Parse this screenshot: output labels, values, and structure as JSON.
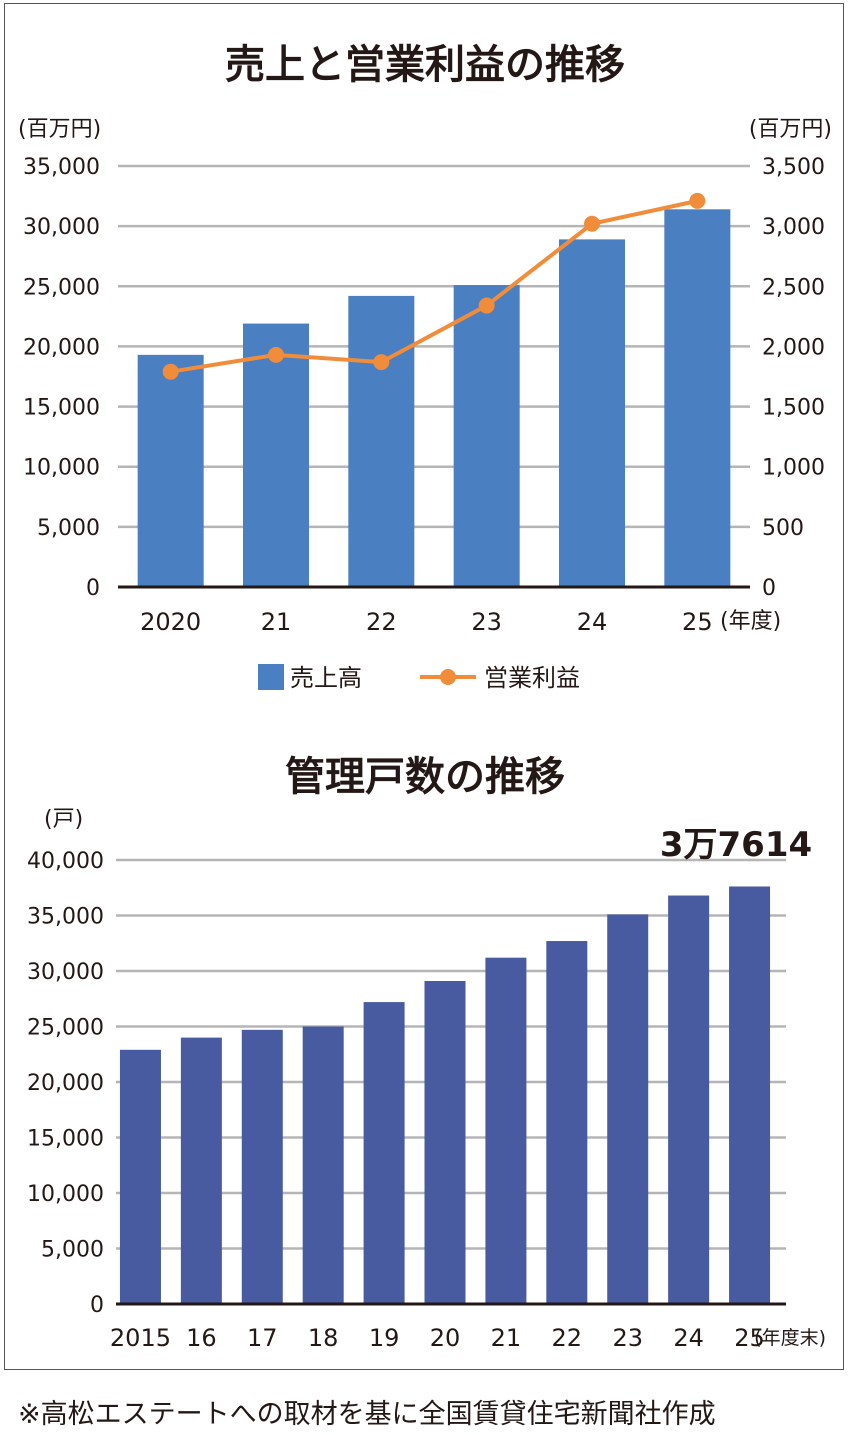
{
  "chart_data": [
    {
      "type": "bar+line",
      "title": "売上と営業利益の推移",
      "ylabel_left": "(百万円)",
      "ylabel_right": "(百万円)",
      "xunit": "(年度)",
      "categories": [
        "2020",
        "21",
        "22",
        "23",
        "24",
        "25"
      ],
      "ylim_left": [
        0,
        35000
      ],
      "ylim_right": [
        0,
        3500
      ],
      "yticks_left": [
        "0",
        "5,000",
        "10,000",
        "15,000",
        "20,000",
        "25,000",
        "30,000",
        "35,000"
      ],
      "yticks_right": [
        "0",
        "500",
        "1,000",
        "1,500",
        "2,000",
        "2,500",
        "3,000",
        "3,500"
      ],
      "grid": true,
      "legend_position": "bottom",
      "series": [
        {
          "name": "売上高",
          "type": "bar",
          "axis": "left",
          "color": "#4a7fc1",
          "values": [
            19300,
            21900,
            24200,
            25100,
            28900,
            31400
          ]
        },
        {
          "name": "営業利益",
          "type": "line",
          "axis": "right",
          "color": "#f08c3a",
          "values": [
            1790,
            1930,
            1870,
            2340,
            3020,
            3210
          ]
        }
      ]
    },
    {
      "type": "bar",
      "title": "管理戸数の推移",
      "ylabel": "(戸)",
      "xunit": "(年度末)",
      "categories": [
        "2015",
        "16",
        "17",
        "18",
        "19",
        "20",
        "21",
        "22",
        "23",
        "24",
        "25"
      ],
      "ylim": [
        0,
        40000
      ],
      "yticks": [
        "0",
        "5,000",
        "10,000",
        "15,000",
        "20,000",
        "25,000",
        "30,000",
        "35,000",
        "40,000"
      ],
      "grid": true,
      "series": [
        {
          "type": "bar",
          "color": "#485ba0",
          "values": [
            22900,
            24000,
            24700,
            25000,
            27200,
            29100,
            31200,
            32700,
            35100,
            36800,
            37614
          ]
        }
      ],
      "annotation": "3万7614"
    }
  ],
  "footer": "※高松エステートへの取材を基に全国賃貸住宅新聞社作成"
}
